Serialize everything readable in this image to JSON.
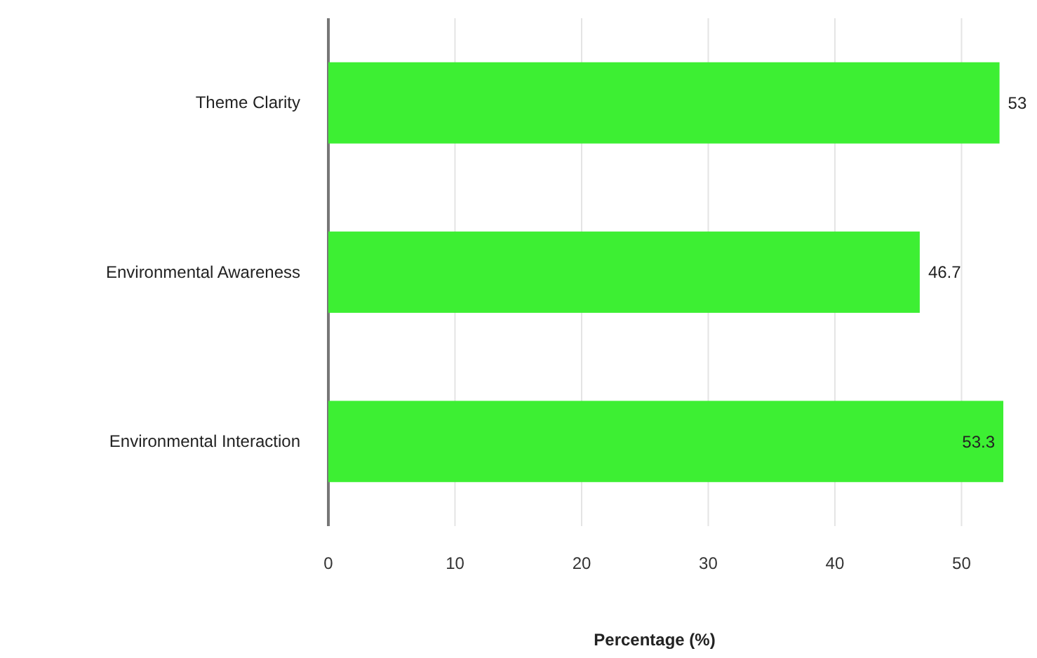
{
  "chart_data": {
    "type": "bar",
    "orientation": "horizontal",
    "categories": [
      "Theme Clarity",
      "Environmental Awareness",
      "Environmental Interaction"
    ],
    "values": [
      53,
      46.7,
      53.3
    ],
    "value_labels": [
      "53",
      "46.7",
      "53.3"
    ],
    "color": "#3def33",
    "xlim": [
      0,
      53.3
    ],
    "xticks": [
      0,
      10,
      20,
      30,
      40,
      50
    ],
    "xlabel": "Percentage (%)",
    "grid": "x"
  }
}
